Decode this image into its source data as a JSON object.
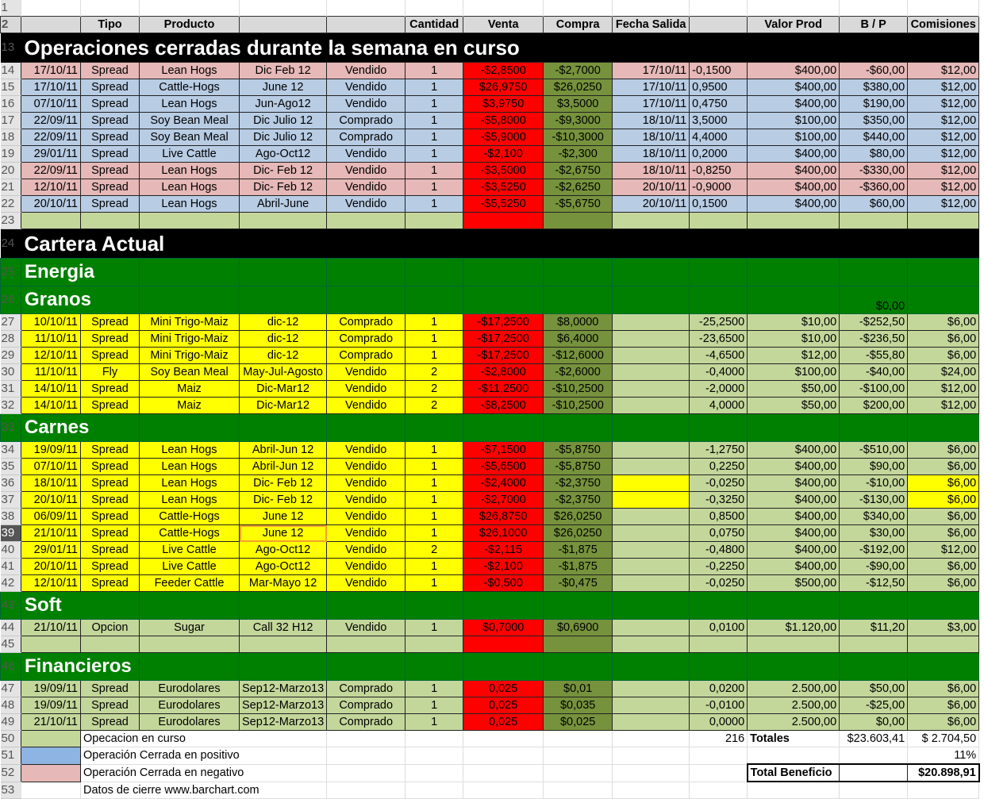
{
  "colors": {
    "pink": "#e6b8b7",
    "blue": "#b8cce4",
    "red": "#ff0000",
    "olive": "#76923c",
    "light_green": "#c4d79b",
    "yellow": "#ffff00",
    "section_green": "#008000"
  },
  "header": {
    "row": "2",
    "cells": [
      "",
      "Tipo",
      "Producto",
      "",
      "",
      "Cantidad",
      "Venta",
      "Compra",
      "Fecha Salida",
      "",
      "Valor Prod",
      "B / P",
      "Comisiones"
    ]
  },
  "rows": [
    {
      "n": "1",
      "kind": "blank1",
      "cells": []
    },
    {
      "n": "13",
      "kind": "title",
      "title": "Operaciones cerradas durante la semana en curso"
    },
    {
      "n": "14",
      "kind": "pink",
      "cells": [
        "17/10/11",
        "Spread",
        "Lean Hogs",
        "Dic Feb 12",
        "Vendido",
        "1",
        "-$2,8500",
        "-$2,7000",
        "17/10/11",
        "-0,1500",
        "$400,00",
        "-$60,00",
        "$12,00"
      ]
    },
    {
      "n": "15",
      "kind": "blue",
      "cells": [
        "17/10/11",
        "Spread",
        "Cattle-Hogs",
        "June 12",
        "Vendido",
        "1",
        "$26,9750",
        "$26,0250",
        "17/10/11",
        "0,9500",
        "$400,00",
        "$380,00",
        "$12,00"
      ]
    },
    {
      "n": "16",
      "kind": "blue",
      "cells": [
        "07/10/11",
        "Spread",
        "Lean Hogs",
        "Jun-Ago12",
        "Vendido",
        "1",
        "$3,9750",
        "$3,5000",
        "17/10/11",
        "0,4750",
        "$400,00",
        "$190,00",
        "$12,00"
      ]
    },
    {
      "n": "17",
      "kind": "blue",
      "cells": [
        "22/09/11",
        "Spread",
        "Soy Bean Meal",
        "Dic Julio 12",
        "Comprado",
        "1",
        "-$5,8000",
        "-$9,3000",
        "18/10/11",
        "3,5000",
        "$100,00",
        "$350,00",
        "$12,00"
      ]
    },
    {
      "n": "18",
      "kind": "blue",
      "cells": [
        "22/09/11",
        "Spread",
        "Soy Bean Meal",
        "Dic Julio 12",
        "Comprado",
        "1",
        "-$5,9000",
        "-$10,3000",
        "18/10/11",
        "4,4000",
        "$100,00",
        "$440,00",
        "$12,00"
      ]
    },
    {
      "n": "19",
      "kind": "blue",
      "cells": [
        "29/01/11",
        "Spread",
        "Live Cattle",
        "Ago-Oct12",
        "Vendido",
        "1",
        "-$2,100",
        "-$2,300",
        "18/10/11",
        "0,2000",
        "$400,00",
        "$80,00",
        "$12,00"
      ]
    },
    {
      "n": "20",
      "kind": "pink",
      "cells": [
        "22/09/11",
        "Spread",
        "Lean Hogs",
        "Dic- Feb 12",
        "Vendido",
        "1",
        "-$3,5000",
        "-$2,6750",
        "18/10/11",
        "-0,8250",
        "$400,00",
        "-$330,00",
        "$12,00"
      ]
    },
    {
      "n": "21",
      "kind": "pink",
      "cells": [
        "12/10/11",
        "Spread",
        "Lean Hogs",
        "Dic- Feb 12",
        "Vendido",
        "1",
        "-$3,5250",
        "-$2,6250",
        "20/10/11",
        "-0,9000",
        "$400,00",
        "-$360,00",
        "$12,00"
      ]
    },
    {
      "n": "22",
      "kind": "blue",
      "cells": [
        "20/10/11",
        "Spread",
        "Lean Hogs",
        "Abril-June",
        "Vendido",
        "1",
        "-$5,5250",
        "-$5,6750",
        "20/10/11",
        "0,1500",
        "$400,00",
        "$60,00",
        "$12,00"
      ]
    },
    {
      "n": "23",
      "kind": "empty",
      "cells": [
        "",
        "",
        "",
        "",
        "",
        "",
        "",
        "",
        "",
        "",
        "",
        "",
        ""
      ]
    },
    {
      "n": "24",
      "kind": "title",
      "title": "Cartera Actual"
    },
    {
      "n": "25",
      "kind": "sec",
      "title": "Energia"
    },
    {
      "n": "26",
      "kind": "sec",
      "title": "Granos",
      "value": "$0,00"
    },
    {
      "n": "27",
      "kind": "yel",
      "cells": [
        "10/10/11",
        "Spread",
        "Mini Trigo-Maiz",
        "dic-12",
        "Comprado",
        "1",
        "-$17,2500",
        "$8,0000",
        "",
        "-25,2500",
        "$10,00",
        "-$252,50",
        "$6,00"
      ]
    },
    {
      "n": "28",
      "kind": "yel",
      "cells": [
        "11/10/11",
        "Spread",
        "Mini Trigo-Maiz",
        "dic-12",
        "Comprado",
        "1",
        "-$17,2500",
        "$6,4000",
        "",
        "-23,6500",
        "$10,00",
        "-$236,50",
        "$6,00"
      ]
    },
    {
      "n": "29",
      "kind": "yel",
      "cells": [
        "12/10/11",
        "Spread",
        "Mini Trigo-Maiz",
        "dic-12",
        "Comprado",
        "1",
        "-$17,2500",
        "-$12,6000",
        "",
        "-4,6500",
        "$12,00",
        "-$55,80",
        "$6,00"
      ]
    },
    {
      "n": "30",
      "kind": "yel",
      "cells": [
        "11/10/11",
        "Fly",
        "Soy Bean Meal",
        "May-Jul-Agosto",
        "Vendido",
        "2",
        "-$2,8000",
        "-$2,6000",
        "",
        "-0,4000",
        "$100,00",
        "-$40,00",
        "$24,00"
      ]
    },
    {
      "n": "31",
      "kind": "yel",
      "cells": [
        "14/10/11",
        "Spread",
        "Maiz",
        "Dic-Mar12",
        "Vendido",
        "2",
        "-$11,2500",
        "-$10,2500",
        "",
        "-2,0000",
        "$50,00",
        "-$100,00",
        "$12,00"
      ]
    },
    {
      "n": "32",
      "kind": "yel",
      "cells": [
        "14/10/11",
        "Spread",
        "Maiz",
        "Dic-Mar12",
        "Vendido",
        "2",
        "-$8,2500",
        "-$10,2500",
        "",
        "4,0000",
        "$50,00",
        "$200,00",
        "$12,00"
      ]
    },
    {
      "n": "33",
      "kind": "sec",
      "title": "Carnes"
    },
    {
      "n": "34",
      "kind": "yel",
      "cells": [
        "19/09/11",
        "Spread",
        "Lean Hogs",
        "Abril-Jun 12",
        "Vendido",
        "1",
        "-$7,1500",
        "-$5,8750",
        "",
        "-1,2750",
        "$400,00",
        "-$510,00",
        "$6,00"
      ]
    },
    {
      "n": "35",
      "kind": "yel",
      "cells": [
        "07/10/11",
        "Spread",
        "Lean Hogs",
        "Abril-Jun 12",
        "Vendido",
        "1",
        "-$5,6500",
        "-$5,8750",
        "",
        "0,2250",
        "$400,00",
        "$90,00",
        "$6,00"
      ]
    },
    {
      "n": "36",
      "kind": "yel2",
      "cells": [
        "18/10/11",
        "Spread",
        "Lean Hogs",
        "Dic- Feb 12",
        "Vendido",
        "1",
        "-$2,4000",
        "-$2,3750",
        "",
        "-0,0250",
        "$400,00",
        "-$10,00",
        "$6,00"
      ]
    },
    {
      "n": "37",
      "kind": "yel2",
      "cells": [
        "20/10/11",
        "Spread",
        "Lean Hogs",
        "Dic- Feb 12",
        "Vendido",
        "1",
        "-$2,7000",
        "-$2,3750",
        "",
        "-0,3250",
        "$400,00",
        "-$130,00",
        "$6,00"
      ]
    },
    {
      "n": "38",
      "kind": "yel",
      "cells": [
        "06/09/11",
        "Spread",
        "Cattle-Hogs",
        "June 12",
        "Vendido",
        "1",
        "$26,8750",
        "$26,0250",
        "",
        "0,8500",
        "$400,00",
        "$340,00",
        "$6,00"
      ]
    },
    {
      "n": "39",
      "kind": "yel",
      "selected": true,
      "cells": [
        "21/10/11",
        "Spread",
        "Cattle-Hogs",
        "June 12",
        "Vendido",
        "1",
        "$26,1000",
        "$26,0250",
        "",
        "0,0750",
        "$400,00",
        "$30,00",
        "$6,00"
      ]
    },
    {
      "n": "40",
      "kind": "yel",
      "cells": [
        "29/01/11",
        "Spread",
        "Live Cattle",
        "Ago-Oct12",
        "Vendido",
        "2",
        "-$2,115",
        "-$1,875",
        "",
        "-0,4800",
        "$400,00",
        "-$192,00",
        "$12,00"
      ]
    },
    {
      "n": "41",
      "kind": "yel",
      "cells": [
        "20/10/11",
        "Spread",
        "Live Cattle",
        "Ago-Oct12",
        "Vendido",
        "1",
        "-$2,100",
        "-$1,875",
        "",
        "-0,2250",
        "$400,00",
        "-$90,00",
        "$6,00"
      ]
    },
    {
      "n": "42",
      "kind": "yel",
      "cells": [
        "12/10/11",
        "Spread",
        "Feeder Cattle",
        "Mar-Mayo 12",
        "Vendido",
        "1",
        "-$0,500",
        "-$0,475",
        "",
        "-0,0250",
        "$500,00",
        "-$12,50",
        "$6,00"
      ]
    },
    {
      "n": "43",
      "kind": "sec",
      "title": "Soft"
    },
    {
      "n": "44",
      "kind": "lg",
      "cells": [
        "21/10/11",
        "Opcion",
        "Sugar",
        "Call 32 H12",
        "Vendido",
        "1",
        "$0,7000",
        "$0,6900",
        "",
        "0,0100",
        "$1.120,00",
        "$11,20",
        "$3,00"
      ]
    },
    {
      "n": "45",
      "kind": "empty",
      "cells": [
        "",
        "",
        "",
        "",
        "",
        "",
        "",
        "",
        "",
        "",
        "",
        "",
        ""
      ]
    },
    {
      "n": "46",
      "kind": "sec",
      "title": "Financieros"
    },
    {
      "n": "47",
      "kind": "lg",
      "cells": [
        "19/09/11",
        "Spread",
        "Eurodolares",
        "Sep12-Marzo13",
        "Comprado",
        "1",
        "0,025",
        "$0,01",
        "",
        "0,0200",
        "2.500,00",
        "$50,00",
        "$6,00"
      ]
    },
    {
      "n": "48",
      "kind": "lg",
      "cells": [
        "19/09/11",
        "Spread",
        "Eurodolares",
        "Sep12-Marzo13",
        "Comprado",
        "1",
        "0,025",
        "$0,035",
        "",
        "-0,0100",
        "2.500,00",
        "-$25,00",
        "$6,00"
      ]
    },
    {
      "n": "49",
      "kind": "lg",
      "cells": [
        "21/10/11",
        "Spread",
        "Eurodolares",
        "Sep12-Marzo13",
        "Comprado",
        "1",
        "0,025",
        "$0,025",
        "",
        "0,0000",
        "2.500,00",
        "$0,00",
        "$6,00"
      ]
    }
  ],
  "footer": {
    "legend_open": "Opecacion en curso",
    "legend_positive": "Operación Cerrada en positivo",
    "legend_negative": "Operación Cerrada en negativo",
    "source": "Datos de cierre www.barchart.com",
    "count": "216",
    "totals_label": "Totales",
    "totals_bp": "$23.603,41",
    "totals_comisiones": "$ 2.704,50",
    "percent": "11%",
    "total_beneficio_label": "Total Beneficio",
    "total_beneficio": "$20.898,91"
  }
}
